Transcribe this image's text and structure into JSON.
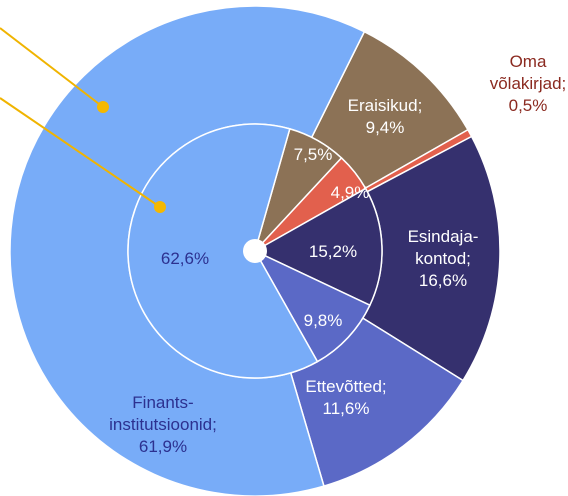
{
  "chart_data": {
    "type": "pie",
    "series": [
      {
        "values": [
          9.4,
          0.5,
          16.6,
          11.6,
          61.9
        ],
        "value_labels": [
          "Eraisikud;\n9,4%",
          "Oma\nvõlakirjad;\n0,5%",
          "Esindaja-\nkontod;\n16,6%",
          "Ettevõtted;\n11,6%",
          "Finants-\ninstitutsioonid;\n61,9%"
        ],
        "colors": [
          "#8c7256",
          "#e2604d",
          "#35306e",
          "#5b69c6",
          "#78acf8"
        ]
      },
      {
        "values": [
          7.5,
          4.9,
          15.2,
          9.8,
          62.6
        ],
        "value_labels": [
          "7,5%",
          "4,9%",
          "15,2%",
          "9,8%",
          "62,6%"
        ],
        "colors": [
          "#8c7256",
          "#e2604d",
          "#35306e",
          "#5b69c6",
          "#78acf8"
        ]
      }
    ]
  }
}
